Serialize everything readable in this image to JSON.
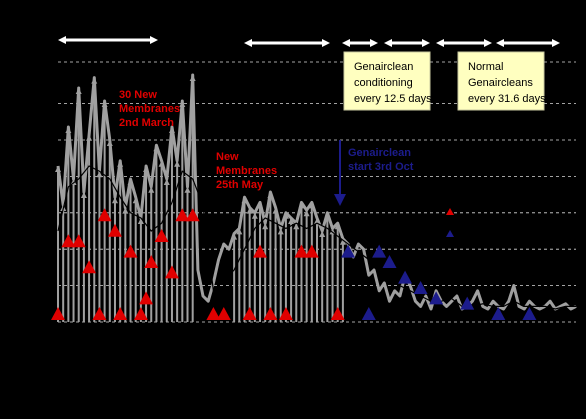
{
  "chart_data": {
    "type": "line",
    "title": "",
    "xlabel": "",
    "ylabel": "",
    "grid": "horizontal-dashed",
    "xlim": [
      0,
      100
    ],
    "ylim": [
      0,
      100
    ],
    "series": [
      {
        "role": "raw-spikes",
        "color": "#a0a0a0",
        "x": [
          0,
          1,
          2,
          3,
          4,
          5,
          6,
          7,
          8,
          9,
          10,
          11,
          12,
          13,
          14,
          15,
          16,
          17,
          18,
          19,
          20,
          21,
          22,
          23,
          24,
          25,
          26,
          27,
          28,
          29,
          30,
          31,
          32,
          33,
          34,
          35,
          36,
          37,
          38,
          39,
          40,
          41,
          42,
          43,
          44,
          45,
          46,
          47,
          48,
          49,
          50,
          51,
          52,
          53,
          54,
          55,
          56,
          57,
          58,
          59,
          60,
          61,
          62,
          63,
          64,
          65,
          66,
          67,
          68,
          69,
          70,
          71,
          72,
          73,
          74,
          75,
          76,
          77,
          78,
          79,
          80,
          81,
          82,
          83,
          84,
          85,
          86,
          87,
          88,
          89,
          90,
          91,
          92,
          93,
          94,
          95,
          96,
          97,
          98,
          99,
          100
        ],
        "values": [
          60,
          45,
          75,
          55,
          90,
          50,
          72,
          94,
          58,
          85,
          70,
          48,
          62,
          44,
          55,
          48,
          40,
          60,
          52,
          68,
          62,
          55,
          75,
          62,
          85,
          52,
          95,
          20,
          10,
          8,
          15,
          24,
          30,
          28,
          34,
          36,
          48,
          44,
          42,
          46,
          38,
          50,
          44,
          36,
          42,
          40,
          38,
          46,
          43,
          46,
          40,
          35,
          42,
          36,
          38,
          32,
          30,
          25,
          30,
          28,
          18,
          20,
          12,
          15,
          8,
          12,
          10,
          18,
          14,
          8,
          6,
          10,
          5,
          12,
          8,
          6,
          8,
          10,
          5,
          6,
          8,
          12,
          6,
          5,
          8,
          6,
          5,
          8,
          14,
          6,
          5,
          8,
          6,
          5,
          6,
          8,
          5,
          6,
          7,
          5,
          6
        ]
      },
      {
        "role": "smoothed",
        "color": "#000000",
        "x": [
          0,
          2,
          4,
          6,
          8,
          10,
          12,
          14,
          16,
          18,
          20,
          22,
          24,
          26,
          28,
          30,
          32,
          34,
          36,
          38,
          40,
          42,
          44,
          46,
          48,
          50,
          52,
          54,
          56,
          58,
          60,
          62,
          64,
          66,
          68,
          70,
          72,
          74,
          76,
          78,
          80,
          82,
          84,
          86,
          88,
          90,
          92,
          94,
          96,
          98,
          100
        ],
        "values": [
          35,
          52,
          55,
          60,
          58,
          55,
          48,
          42,
          40,
          35,
          38,
          46,
          58,
          55,
          45,
          12,
          16,
          20,
          28,
          36,
          40,
          38,
          36,
          38,
          36,
          38,
          36,
          33,
          30,
          27,
          24,
          20,
          18,
          14,
          12,
          10,
          8,
          8,
          9,
          6,
          6,
          7,
          6,
          6,
          8,
          6,
          6,
          6,
          5,
          6,
          6
        ]
      }
    ],
    "markers": {
      "red_triangles": [
        {
          "x": 0,
          "y": 0
        },
        {
          "x": 2,
          "y": 28
        },
        {
          "x": 4,
          "y": 28
        },
        {
          "x": 6,
          "y": 18
        },
        {
          "x": 8,
          "y": 0
        },
        {
          "x": 9,
          "y": 38
        },
        {
          "x": 11,
          "y": 32
        },
        {
          "x": 12,
          "y": 0
        },
        {
          "x": 14,
          "y": 24
        },
        {
          "x": 16,
          "y": 0
        },
        {
          "x": 17,
          "y": 6
        },
        {
          "x": 18,
          "y": 20
        },
        {
          "x": 20,
          "y": 30
        },
        {
          "x": 22,
          "y": 16
        },
        {
          "x": 24,
          "y": 38
        },
        {
          "x": 26,
          "y": 38
        },
        {
          "x": 30,
          "y": 0
        },
        {
          "x": 32,
          "y": 0
        },
        {
          "x": 37,
          "y": 0
        },
        {
          "x": 39,
          "y": 24
        },
        {
          "x": 41,
          "y": 0
        },
        {
          "x": 44,
          "y": 0
        },
        {
          "x": 47,
          "y": 24
        },
        {
          "x": 49,
          "y": 24
        },
        {
          "x": 54,
          "y": 0
        }
      ],
      "blue_triangles": [
        {
          "x": 56,
          "y": 24
        },
        {
          "x": 60,
          "y": 0
        },
        {
          "x": 62,
          "y": 24
        },
        {
          "x": 64,
          "y": 20
        },
        {
          "x": 67,
          "y": 14
        },
        {
          "x": 70,
          "y": 10
        },
        {
          "x": 73,
          "y": 6
        },
        {
          "x": 79,
          "y": 4
        },
        {
          "x": 85,
          "y": 0
        },
        {
          "x": 91,
          "y": 0
        }
      ]
    },
    "annotations": {
      "new_membranes_1": [
        "30 New",
        "Membranes",
        "2nd March"
      ],
      "new_membranes_2": [
        "New",
        "Membranes",
        "25th May"
      ],
      "genairclean_start": [
        "Genairclean",
        "start 3rd Oct"
      ],
      "conditioning_box": [
        "Genairclean",
        "conditioning",
        "every  12.5 days"
      ],
      "normal_box": [
        "Normal",
        "Genaircleans",
        "every  31.6 days"
      ]
    },
    "colors": {
      "background": "#000000",
      "grid": "#ffffff",
      "raw": "#a0a0a0",
      "smoothed": "#000000",
      "red_marker": "#e00000",
      "blue_marker": "#1c1c8c",
      "box_fill": "#ffffc0"
    }
  }
}
